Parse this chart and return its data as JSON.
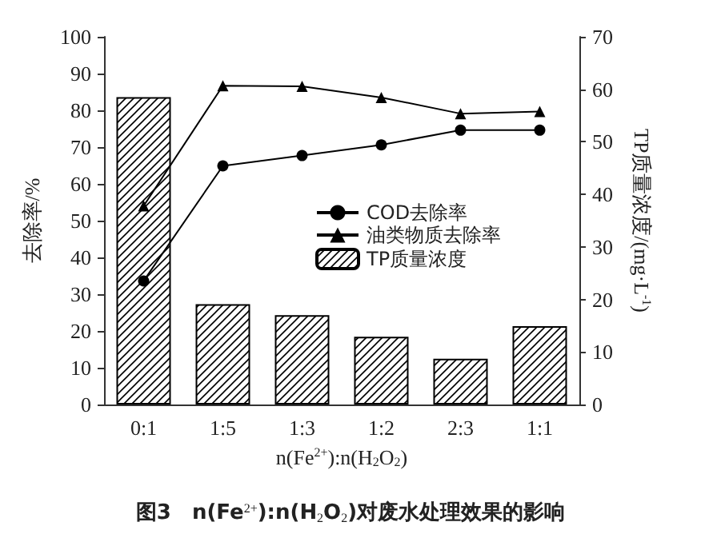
{
  "chart_data": {
    "type": "bar",
    "xlabel": "n(Fe$^{2+}$):n(H$_{2}$O$_{2}$)",
    "ylabel": "去除率/%",
    "y2label": "TP质量浓度/(mg·L$^{-1}$)",
    "annotations": [
      "图3　n(Fe$^{2+}$):n(H$_{2}$O$_{2}$)对废水处理效果的影响"
    ],
    "categories": [
      "0:1",
      "1:5",
      "1:3",
      "1:2",
      "2:3",
      "1:1"
    ],
    "series": [
      {
        "name": "COD去除率",
        "type": "line",
        "marker": "circle",
        "color": "#000000",
        "values": [
          33.6,
          64.9,
          67.7,
          70.6,
          74.6,
          74.6
        ]
      },
      {
        "name": "油类物质去除率",
        "type": "line",
        "marker": "triangle",
        "color": "#000000",
        "values": [
          54,
          86.7,
          86.5,
          83.5,
          79.1,
          79.7
        ]
      },
      {
        "name": "TP质量浓度",
        "axis": "y2",
        "color": "#000000",
        "values": [
          58.5,
          19.1,
          17.0,
          12.9,
          8.7,
          14.9
        ]
      }
    ],
    "ylim": [
      0,
      100
    ],
    "yticks": [
      0,
      10,
      20,
      30,
      40,
      50,
      60,
      70,
      80,
      90,
      100
    ],
    "y2lim": [
      0,
      70
    ],
    "y2ticks": [
      0,
      10,
      20,
      30,
      40,
      50,
      60,
      70
    ],
    "grid": false,
    "legend": "right"
  }
}
